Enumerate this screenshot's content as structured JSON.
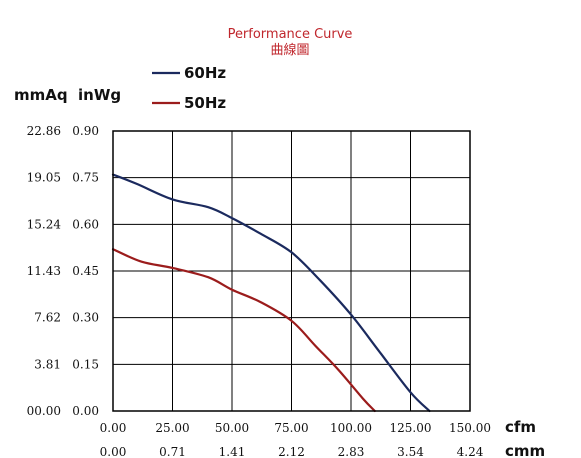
{
  "chart_data": {
    "type": "line",
    "title": "Performance Curve",
    "subtitle": "曲線圖",
    "x_unit_primary": "cfm",
    "x_unit_secondary": "cmm",
    "y_unit_primary": "mmAq",
    "y_unit_secondary": "inWg",
    "x_ticks_cfm": [
      "0.00",
      "25.00",
      "50.00",
      "75.00",
      "100.00",
      "125.00",
      "150.00"
    ],
    "x_ticks_cmm": [
      "0.00",
      "0.71",
      "1.41",
      "2.12",
      "2.83",
      "3.54",
      "4.24"
    ],
    "y_ticks_mmaq": [
      "00.00",
      "3.81",
      "7.62",
      "11.43",
      "15.24",
      "19.05",
      "22.86"
    ],
    "y_ticks_inwg": [
      "0.00",
      "0.15",
      "0.30",
      "0.45",
      "0.60",
      "0.75",
      "0.90"
    ],
    "xlim": [
      0,
      150
    ],
    "ylim": [
      0,
      0.9
    ],
    "grid": true,
    "legend_position": "top-left",
    "series": [
      {
        "name": "60Hz",
        "color": "#1b2a5e",
        "x": [
          0,
          10,
          25,
          40,
          50,
          62,
          75,
          87,
          100,
          112,
          125,
          133
        ],
        "y": [
          0.76,
          0.73,
          0.68,
          0.655,
          0.62,
          0.57,
          0.51,
          0.42,
          0.31,
          0.19,
          0.06,
          0.0
        ]
      },
      {
        "name": "50Hz",
        "color": "#9b1c1c",
        "x": [
          0,
          12,
          25,
          40,
          50,
          62,
          75,
          85,
          95,
          105,
          110
        ],
        "y": [
          0.52,
          0.48,
          0.46,
          0.43,
          0.39,
          0.35,
          0.29,
          0.21,
          0.13,
          0.04,
          0.0
        ]
      }
    ]
  }
}
